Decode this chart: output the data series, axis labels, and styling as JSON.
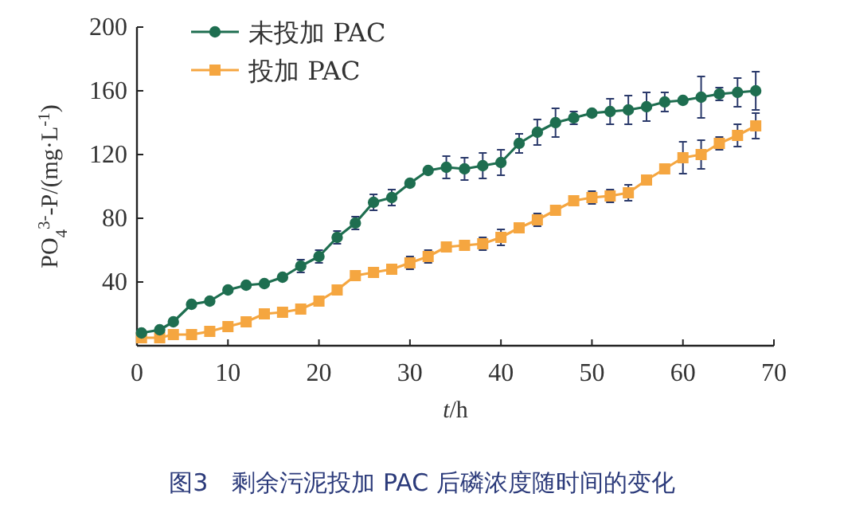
{
  "chart_data": {
    "type": "line",
    "title": "图3　剩余污泥投加 PAC 后磷浓度随时间的变化",
    "xlabel": "*t*/h",
    "ylabel": "PO$_{4}$$^{3-}$-P/(mg·L$^{-1}$)",
    "xlim": [
      0,
      70
    ],
    "xticks": [
      0,
      10,
      20,
      30,
      40,
      50,
      60,
      70
    ],
    "ylim": [
      0,
      200
    ],
    "yticks": [
      40,
      80,
      120,
      160,
      200
    ],
    "legend": "top left",
    "grid": false,
    "x": [
      0.5,
      2.5,
      4,
      6,
      8,
      10,
      12,
      14,
      16,
      18,
      20,
      22,
      24,
      26,
      28,
      30,
      32,
      34,
      36,
      38,
      40,
      42,
      44,
      46,
      48,
      50,
      52,
      54,
      56,
      58,
      60,
      62,
      64,
      66,
      68
    ],
    "series": [
      {
        "name": "未投加 PAC",
        "color": "#1e6e50",
        "marker": "circle",
        "values": [
          8,
          10,
          15,
          26,
          28,
          35,
          38,
          39,
          43,
          50,
          56,
          68,
          77,
          90,
          93,
          102,
          110,
          112,
          111,
          113,
          115,
          127,
          134,
          140,
          143,
          146,
          147,
          148,
          150,
          153,
          154,
          156,
          158,
          159,
          160
        ],
        "errors": [
          null,
          null,
          null,
          null,
          null,
          null,
          null,
          null,
          null,
          4,
          4,
          4,
          4,
          5,
          5,
          null,
          null,
          7,
          7,
          8,
          8,
          6,
          8,
          9,
          4,
          null,
          8,
          9,
          9,
          6,
          null,
          13,
          4,
          9,
          12
        ]
      },
      {
        "name": "投加 PAC",
        "color": "#f5a640",
        "marker": "square",
        "values": [
          5,
          5,
          7,
          7,
          9,
          12,
          15,
          20,
          21,
          23,
          28,
          35,
          44,
          46,
          48,
          52,
          56,
          62,
          63,
          64,
          68,
          74,
          79,
          85,
          91,
          93,
          94,
          96,
          104,
          111,
          118,
          120,
          127,
          132,
          138
        ],
        "errors": [
          null,
          null,
          null,
          null,
          null,
          null,
          null,
          null,
          null,
          null,
          null,
          null,
          null,
          null,
          null,
          4,
          4,
          null,
          null,
          4,
          5,
          null,
          4,
          null,
          null,
          4,
          4,
          5,
          null,
          null,
          10,
          9,
          4,
          7,
          8
        ]
      }
    ]
  }
}
